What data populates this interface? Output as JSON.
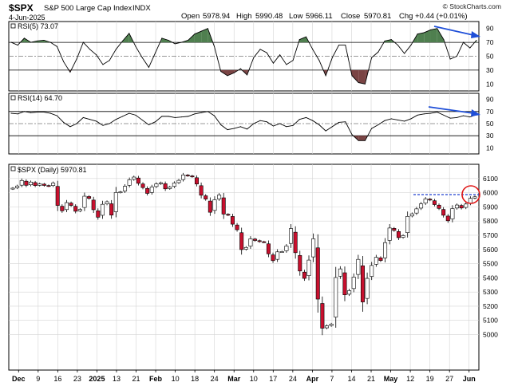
{
  "header": {
    "symbol": "$SPX",
    "name": "S&P 500 Large Cap Index",
    "exchange": "INDX",
    "date": "4-Jun-2025",
    "open_label": "Open",
    "open": "5978.94",
    "high_label": "High",
    "high": "5990.48",
    "low_label": "Low",
    "low": "5966.11",
    "close_label": "Close",
    "close": "5970.81",
    "chg_label": "Chg",
    "chg": "+0.44 (+0.01%)",
    "watermark": "© StockCharts.com"
  },
  "colors": {
    "up": "#ffffff",
    "down": "#c8102e",
    "rsi_overbought_fill": "#4f7f4f",
    "rsi_oversold_fill": "#7a4444",
    "arrow": "#1f4fd8",
    "resistance": "#1f3fcf",
    "circle": "#e01818",
    "grid": "#d4d4d4"
  },
  "chart_data": [
    {
      "type": "line",
      "title": "RSI(5) 73.07",
      "ylim": [
        0,
        100
      ],
      "y_ticks": [
        "10",
        "30",
        "50",
        "70",
        "90"
      ],
      "values": [
        70,
        66,
        76,
        70,
        72,
        73,
        70,
        64,
        42,
        27,
        46,
        70,
        60,
        52,
        38,
        44,
        60,
        72,
        83,
        64,
        48,
        34,
        55,
        76,
        73,
        68,
        70,
        73,
        82,
        86,
        90,
        64,
        28,
        22,
        26,
        32,
        23,
        48,
        60,
        55,
        40,
        52,
        38,
        44,
        74,
        78,
        60,
        44,
        22,
        48,
        66,
        66,
        22,
        12,
        10,
        48,
        56,
        72,
        74,
        66,
        54,
        66,
        82,
        84,
        88,
        90,
        74,
        46,
        50,
        70,
        62,
        73
      ]
    },
    {
      "type": "line",
      "title": "RSI(14) 64.70",
      "ylim": [
        0,
        100
      ],
      "y_ticks": [
        "10",
        "30",
        "50",
        "70",
        "90"
      ],
      "values": [
        67,
        66,
        70,
        68,
        69,
        69,
        67,
        63,
        52,
        45,
        50,
        60,
        57,
        54,
        47,
        50,
        57,
        62,
        67,
        64,
        56,
        48,
        53,
        62,
        62,
        60,
        61,
        62,
        66,
        68,
        70,
        63,
        48,
        40,
        42,
        45,
        41,
        50,
        55,
        53,
        46,
        50,
        45,
        47,
        57,
        60,
        55,
        48,
        38,
        45,
        52,
        53,
        32,
        22,
        22,
        42,
        48,
        55,
        58,
        56,
        54,
        58,
        64,
        66,
        67,
        69,
        64,
        59,
        60,
        63,
        61,
        64.7
      ]
    },
    {
      "type": "candlestick",
      "title": "$SPX (Daily) 5970.81",
      "ylim": [
        4750,
        6200
      ],
      "y_ticks": [
        "5000",
        "5100",
        "5200",
        "5300",
        "5400",
        "5500",
        "5600",
        "5700",
        "5800",
        "5900",
        "6000",
        "6100"
      ],
      "x_tick_labels": [
        "Dec",
        "9",
        "16",
        "23",
        "2025",
        "13",
        "21",
        "Feb",
        "10",
        "18",
        "24",
        "Mar",
        "10",
        "17",
        "24",
        "Apr",
        "7",
        "14",
        "21",
        "May",
        "12",
        "19",
        "27",
        "Jun"
      ],
      "closes": [
        6032,
        6047,
        6086,
        6052,
        6075,
        6050,
        6062,
        6051,
        6047,
        6068,
        5910,
        5872,
        5930,
        5910,
        5869,
        5882,
        5975,
        5960,
        5880,
        5827,
        5918,
        5936,
        5842,
        6001,
        6006,
        6045,
        6091,
        6110,
        6066,
        6036,
        5995,
        6040,
        6062,
        6070,
        6027,
        6040,
        6068,
        6087,
        6125,
        6119,
        6113,
        6061,
        5982,
        5955,
        5862,
        5950,
        5984,
        5849,
        5842,
        5778,
        5739,
        5599,
        5614,
        5675,
        5663,
        5655,
        5652,
        5569,
        5521,
        5583,
        5585,
        5624,
        5747,
        5577,
        5448,
        5396,
        5525,
        5675,
        5250,
        5045,
        5062,
        5074,
        5402,
        5463,
        5280,
        5310,
        5405,
        5530,
        5230,
        5396,
        5487,
        5544,
        5522,
        5648,
        5751,
        5734,
        5683,
        5698,
        5833,
        5851,
        5886,
        5921,
        5956,
        5948,
        5916,
        5889,
        5841,
        5802,
        5888,
        5913,
        5892,
        5920,
        5960,
        5970.81
      ]
    }
  ]
}
